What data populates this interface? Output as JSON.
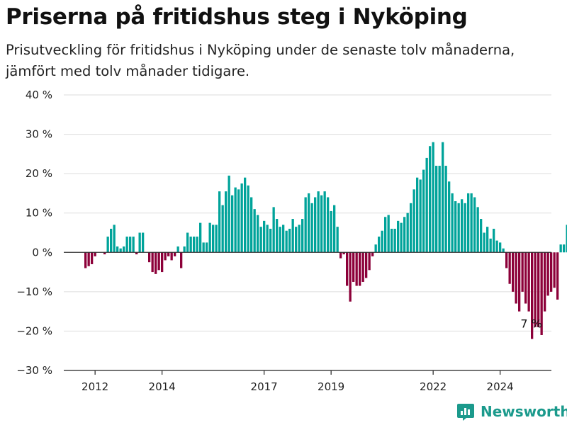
{
  "title": "Priserna på fritidshus steg i Nyköping",
  "subtitle": "Prisutveckling för fritidshus i Nyköping under de senaste tolv månaderna, jämfört med tolv månader tidigare.",
  "brand": {
    "name": "Newsworthy",
    "icon": "newsworthy-chart-logo-icon",
    "color": "#1b9a8c"
  },
  "chart_data": {
    "type": "bar",
    "title": "Priserna på fritidshus steg i Nyköping",
    "subtitle": "Prisutveckling för fritidshus i Nyköping under de senaste tolv månaderna, jämfört med tolv månader tidigare.",
    "xlabel": "",
    "ylabel": "",
    "ylim": [
      -30,
      40
    ],
    "yticks": [
      40,
      30,
      20,
      10,
      0,
      -10,
      -20,
      -30
    ],
    "ytick_labels": [
      "40 %",
      "30 %",
      "20 %",
      "10 %",
      "0 %",
      "−10 %",
      "−20 %",
      "−30 %"
    ],
    "xticks": [
      {
        "label": "2012",
        "index": 3
      },
      {
        "label": "2014",
        "index": 24
      },
      {
        "label": "2017",
        "index": 56
      },
      {
        "label": "2019",
        "index": 77
      },
      {
        "label": "2022",
        "index": 109
      },
      {
        "label": "2024",
        "index": 130
      }
    ],
    "grid": true,
    "colors": {
      "positive": "#00a39a",
      "negative": "#8c0039",
      "grid": "#dddddd",
      "zero": "#333333"
    },
    "annotation": {
      "label": "7 %",
      "index": 140
    },
    "values": [
      -4,
      -3.5,
      -3,
      -1,
      0,
      0,
      -0.5,
      4,
      6,
      7,
      1.5,
      1,
      1.5,
      4,
      4,
      4,
      -0.5,
      5,
      5,
      0,
      -2.5,
      -5,
      -5.5,
      -4.5,
      -5,
      -2,
      -1,
      -2,
      -1,
      1.5,
      -4,
      1.5,
      5,
      4,
      4,
      4,
      7.5,
      2.5,
      2.5,
      7.5,
      7,
      7,
      15.5,
      12,
      15.5,
      19.5,
      14.5,
      16.5,
      16,
      17.5,
      19,
      17,
      14,
      11,
      9.5,
      6.5,
      8,
      7,
      6,
      11.5,
      8.5,
      6.5,
      7,
      5.5,
      6,
      8.5,
      6.5,
      7,
      8.5,
      14,
      15,
      12.5,
      14,
      15.5,
      14.5,
      15.5,
      14,
      10.5,
      12,
      6.5,
      -1.5,
      -0.5,
      -8.5,
      -12.5,
      -7.5,
      -8.5,
      -8.5,
      -7.5,
      -6.5,
      -4.5,
      -1,
      2,
      4,
      5.5,
      9,
      9.5,
      6,
      6,
      8,
      7.5,
      9,
      10,
      12.5,
      16,
      19,
      18.5,
      21,
      24,
      27,
      28,
      22,
      22,
      28,
      22,
      18,
      15,
      13,
      12.5,
      13.5,
      12.5,
      15,
      15,
      14,
      11.5,
      8.5,
      5,
      6.5,
      3.5,
      6,
      3,
      2.5,
      1,
      -4,
      -8,
      -10,
      -13,
      -15,
      -10,
      -13,
      -15,
      -22,
      -19,
      -19,
      -21,
      -15,
      -11,
      -10,
      -9,
      -12,
      2,
      2,
      7
    ]
  }
}
